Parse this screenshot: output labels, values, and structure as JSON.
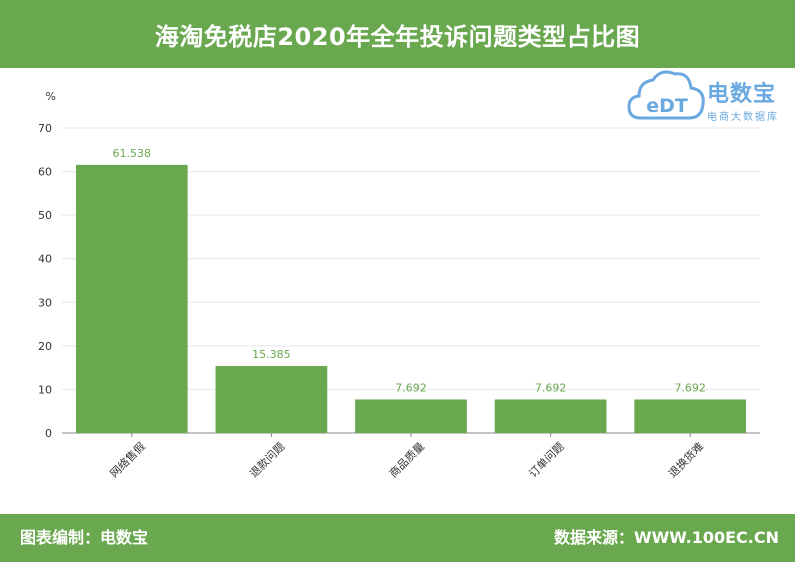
{
  "header": {
    "title": "海淘免税店2020年全年投诉问题类型占比图"
  },
  "logo": {
    "brand": "电数宝",
    "tagline": "电商大数据库",
    "icon_letters": "eDT",
    "color": "#6aa8e0"
  },
  "footer": {
    "left": "图表编制：电数宝",
    "right": "数据来源：WWW.100EC.CN"
  },
  "colors": {
    "accent": "#6aa84f",
    "bar": "#6aa84f",
    "label": "#6aa84f"
  },
  "chart_data": {
    "type": "bar",
    "title": "海淘免税店2020年全年投诉问题类型占比图",
    "xlabel": "",
    "ylabel": "%",
    "categories": [
      "网络售假",
      "退款问题",
      "商品质量",
      "订单问题",
      "退换货难"
    ],
    "values": [
      61.538,
      15.385,
      7.692,
      7.692,
      7.692
    ],
    "value_labels": [
      "61.538",
      "15.385",
      "7.692",
      "7.692",
      "7.692"
    ],
    "ylim": [
      0,
      70
    ],
    "yticks": [
      "0",
      "10",
      "20",
      "30",
      "40",
      "50",
      "60",
      "70"
    ],
    "grid": true,
    "legend": "none"
  }
}
